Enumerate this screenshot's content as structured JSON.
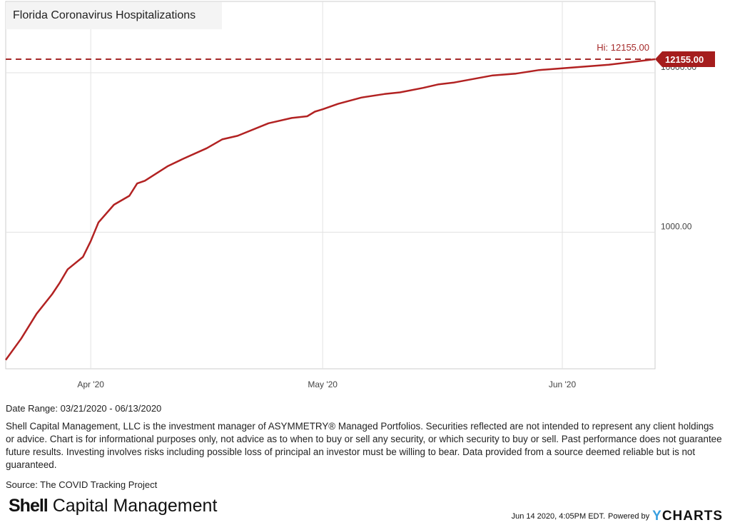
{
  "chart_data": {
    "type": "line",
    "title": "Florida Coronavirus Hospitalizations",
    "yscale": "log",
    "ylim": [
      139,
      28000
    ],
    "xlim": [
      "2020-03-21",
      "2020-06-13"
    ],
    "y_ticks": [
      "1000.00",
      "10000.00"
    ],
    "y_tick_values": [
      1000,
      10000
    ],
    "x_ticks": [
      {
        "date": "2020-04-01",
        "label": "Apr '20"
      },
      {
        "date": "2020-05-01",
        "label": "May '20"
      },
      {
        "date": "2020-06-01",
        "label": "Jun '20"
      }
    ],
    "grid": true,
    "series": [
      {
        "name": "Florida Coronavirus Hospitalizations",
        "color": "#b22222",
        "x": [
          "2020-03-21",
          "2020-03-23",
          "2020-03-25",
          "2020-03-27",
          "2020-03-28",
          "2020-03-29",
          "2020-03-31",
          "2020-04-01",
          "2020-04-02",
          "2020-04-04",
          "2020-04-06",
          "2020-04-07",
          "2020-04-08",
          "2020-04-11",
          "2020-04-13",
          "2020-04-16",
          "2020-04-18",
          "2020-04-20",
          "2020-04-24",
          "2020-04-27",
          "2020-04-29",
          "2020-04-30",
          "2020-05-01",
          "2020-05-03",
          "2020-05-06",
          "2020-05-09",
          "2020-05-11",
          "2020-05-14",
          "2020-05-16",
          "2020-05-18",
          "2020-05-23",
          "2020-05-26",
          "2020-05-29",
          "2020-06-01",
          "2020-06-07",
          "2020-06-13"
        ],
        "values": [
          158,
          215,
          308,
          408,
          482,
          584,
          700,
          880,
          1151,
          1486,
          1690,
          2020,
          2100,
          2600,
          2890,
          3360,
          3820,
          4020,
          4820,
          5200,
          5330,
          5700,
          5900,
          6380,
          6980,
          7350,
          7530,
          8030,
          8460,
          8680,
          9620,
          9870,
          10390,
          10660,
          11220,
          12155
        ]
      }
    ],
    "hi_label": "Hi: 12155.00",
    "hi_value": 12155,
    "last_label": "12155.00"
  },
  "footer": {
    "date_range": "Date Range: 03/21/2020 - 06/13/2020",
    "disclaimer": "Shell Capital Management, LLC is the investment manager of ASYMMETRY® Managed Portfolios. Securities reflected are not intended to represent any client holdings or advice. Chart is for informational purposes only, not advice as to when to buy or sell any security, or which security to buy or sell. Past performance does not guarantee future results. Investing involves risks including possible loss of principal an investor must be willing to bear. Data provided from a source deemed reliable but is not guaranteed.",
    "source": "Source: The COVID Tracking Project",
    "logo_bold": "Shell",
    "logo_rest": " Capital Management",
    "timestamp": "Jun 14 2020, 4:05PM EDT.",
    "powered_by": "Powered by",
    "ycharts_y": "Y",
    "ycharts_rest": "CHARTS"
  }
}
